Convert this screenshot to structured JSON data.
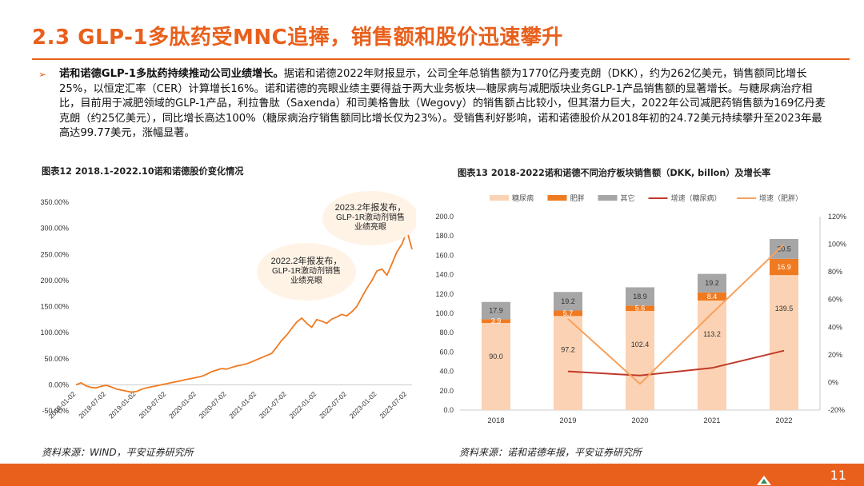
{
  "header": {
    "title": "2.3 GLP-1多肽药受MNC追捧，销售额和股价迅速攀升"
  },
  "paragraph": {
    "bullet": "➢",
    "lead": "诺和诺德GLP-1多肽药持续推动公司业绩增长。",
    "body": "据诺和诺德2022年财报显示，公司全年总销售额为1770亿丹麦克朗（DKK），约为262亿美元，销售额同比增长25%，以恒定汇率（CER）计算增长16%。诺和诺德的亮眼业绩主要得益于两大业务板块—糖尿病与减肥版块业务GLP-1产品销售额的显著增长。与糖尿病治疗相比，目前用于减肥领域的GLP-1产品，利拉鲁肽（Saxenda）和司美格鲁肽（Wegovy）的销售额占比较小，但其潜力巨大，2022年公司减肥药销售额为169亿丹麦克朗（约25亿美元），同比增长高达100%（糖尿病治疗销售额同比增长仅为23%）。受销售利好影响，诺和诺德股价从2018年初的24.72美元持续攀升至2023年最高达99.77美元，涨幅显著。"
  },
  "footer": {
    "page_number": "11",
    "color": "#e8601c"
  },
  "chart_data": [
    {
      "type": "line",
      "caption": "图表12 2018.1-2022.10诺和诺德股价变化情况",
      "source": "资料来源：WIND，平安证券研究所",
      "color": "#f07a20",
      "ylim": [
        -50,
        350
      ],
      "yticks": [
        -50,
        0,
        50,
        100,
        150,
        200,
        250,
        300,
        350
      ],
      "ytick_labels": [
        "-50.00%",
        "0.00%",
        "50.00%",
        "100.00%",
        "150.00%",
        "200.00%",
        "250.00%",
        "300.00%",
        "350.00%"
      ],
      "xlim": [
        0,
        67
      ],
      "xtick_positions": [
        0,
        6,
        12,
        18,
        24,
        30,
        36,
        42,
        48,
        54,
        60,
        66
      ],
      "xtick_labels": [
        "2018-01-02",
        "2018-07-02",
        "2019-01-02",
        "2019-07-02",
        "2020-01-02",
        "2020-07-02",
        "2021-01-02",
        "2021-07-02",
        "2022-01-02",
        "2022-07-02",
        "2023-01-02",
        "2023-07-02"
      ],
      "series": [
        {
          "x": [
            0,
            1,
            2,
            3,
            4,
            5,
            6,
            7,
            8,
            9,
            10,
            11,
            12,
            13,
            14,
            15,
            16,
            17,
            18,
            19,
            20,
            21,
            22,
            23,
            24,
            25,
            26,
            27,
            28,
            29,
            30,
            31,
            32,
            33,
            34,
            35,
            36,
            37,
            38,
            39,
            40,
            41,
            42,
            43,
            44,
            45,
            46,
            47,
            48,
            49,
            50,
            51,
            52,
            53,
            54,
            55,
            56,
            57,
            58,
            59,
            60,
            61,
            62,
            63,
            64,
            65,
            66,
            67
          ],
          "y": [
            0,
            4,
            -2,
            -5,
            -6,
            -3,
            -1,
            -4,
            -8,
            -10,
            -12,
            -14,
            -13,
            -9,
            -6,
            -4,
            -2,
            0,
            2,
            4,
            6,
            8,
            10,
            12,
            14,
            16,
            20,
            25,
            28,
            31,
            30,
            33,
            36,
            38,
            40,
            44,
            48,
            52,
            56,
            60,
            72,
            85,
            95,
            108,
            120,
            128,
            118,
            110,
            125,
            122,
            118,
            126,
            130,
            135,
            132,
            140,
            150,
            168,
            185,
            200,
            218,
            222,
            210,
            232,
            255,
            270,
            295,
            260
          ]
        }
      ],
      "annotations": [
        {
          "text": "2022.2年报发布，GLP-1R激动剂销售业绩亮眼",
          "lines": [
            "2022.2年报发布，",
            "GLP-1R激动剂销售",
            "业绩亮眼"
          ]
        },
        {
          "text": "2023.2年报发布，GLP-1R激动剂销售业绩亮眼",
          "lines": [
            "2023.2年报发布，",
            "GLP-1R激动剂销售",
            "业绩亮眼"
          ]
        }
      ]
    },
    {
      "type": "bar",
      "stacked": true,
      "caption": "图表13 2018-2022诺和诺德不同治疗板块销售额（DKK, billon）及增长率",
      "source": "资料来源：诺和诺德年报，平安证券研究所",
      "categories": [
        "2018",
        "2019",
        "2020",
        "2021",
        "2022"
      ],
      "ylim": [
        0,
        200
      ],
      "yticks": [
        0,
        20,
        40,
        60,
        80,
        100,
        120,
        140,
        160,
        180,
        200
      ],
      "ytick_labels": [
        "0.0",
        "20.0",
        "40.0",
        "60.0",
        "80.0",
        "100.0",
        "120.0",
        "140.0",
        "160.0",
        "180.0",
        "200.0"
      ],
      "y2lim": [
        -20,
        120
      ],
      "y2ticks": [
        -20,
        0,
        20,
        40,
        60,
        80,
        100,
        120
      ],
      "y2tick_labels": [
        "-20%",
        "0%",
        "20%",
        "40%",
        "60%",
        "80%",
        "100%",
        "120%"
      ],
      "series": [
        {
          "name": "糖尿病",
          "color": "#fbd3b4",
          "values": [
            90.0,
            97.2,
            102.4,
            113.2,
            139.5
          ],
          "value_labels": [
            "90.0",
            "97.2",
            "102.4",
            "113.2",
            "139.5"
          ]
        },
        {
          "name": "肥胖",
          "color": "#f07a20",
          "values": [
            3.9,
            5.7,
            5.6,
            8.4,
            16.9
          ],
          "value_labels": [
            "3.9",
            "5.7",
            "5.6",
            "8.4",
            "16.9"
          ]
        },
        {
          "name": "其它",
          "color": "#a6a6a6",
          "values": [
            17.9,
            19.2,
            18.9,
            19.2,
            20.5
          ],
          "value_labels": [
            "17.9",
            "19.2",
            "18.9",
            "19.2",
            "20.5"
          ]
        }
      ],
      "line_series": [
        {
          "name": "增速（糖尿病）",
          "color": "#c0392b",
          "axis": "right",
          "x_categories": [
            "2019",
            "2020",
            "2021",
            "2022"
          ],
          "values": [
            8,
            5,
            10.5,
            23
          ]
        },
        {
          "name": "增速（肥胖）",
          "color": "#f7a15d",
          "axis": "right",
          "x_categories": [
            "2019",
            "2020",
            "2021",
            "2022"
          ],
          "values": [
            46,
            -1,
            50,
            100
          ]
        }
      ],
      "legend": "top"
    }
  ]
}
